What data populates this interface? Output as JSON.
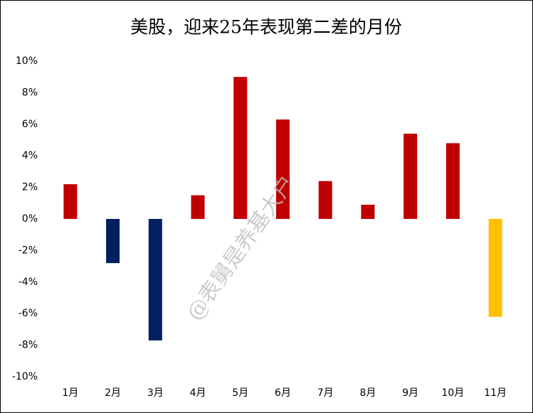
{
  "chart_data": {
    "type": "bar",
    "title": "美股，迎来25年表现第二差的月份",
    "categories": [
      "1月",
      "2月",
      "3月",
      "4月",
      "5月",
      "6月",
      "7月",
      "8月",
      "9月",
      "10月",
      "11月"
    ],
    "values": [
      2.2,
      -2.8,
      -7.7,
      1.5,
      9.0,
      6.3,
      2.4,
      0.9,
      5.4,
      4.8,
      -6.2
    ],
    "colors": [
      "#c00000",
      "#002060",
      "#002060",
      "#c00000",
      "#c00000",
      "#c00000",
      "#c00000",
      "#c00000",
      "#c00000",
      "#c00000",
      "#ffc000"
    ],
    "ylim": [
      -10,
      10
    ],
    "yticks": [
      {
        "value": 10,
        "label": "10%"
      },
      {
        "value": 8,
        "label": "8%"
      },
      {
        "value": 6,
        "label": "6%"
      },
      {
        "value": 4,
        "label": "4%"
      },
      {
        "value": 2,
        "label": "2%"
      },
      {
        "value": 0,
        "label": "0%"
      },
      {
        "value": -2,
        "label": "-2%"
      },
      {
        "value": -4,
        "label": "-4%"
      },
      {
        "value": -6,
        "label": "-6%"
      },
      {
        "value": -8,
        "label": "-8%"
      },
      {
        "value": -10,
        "label": "-10%"
      }
    ],
    "grid": false,
    "watermark": "@表舅是养基大户"
  }
}
